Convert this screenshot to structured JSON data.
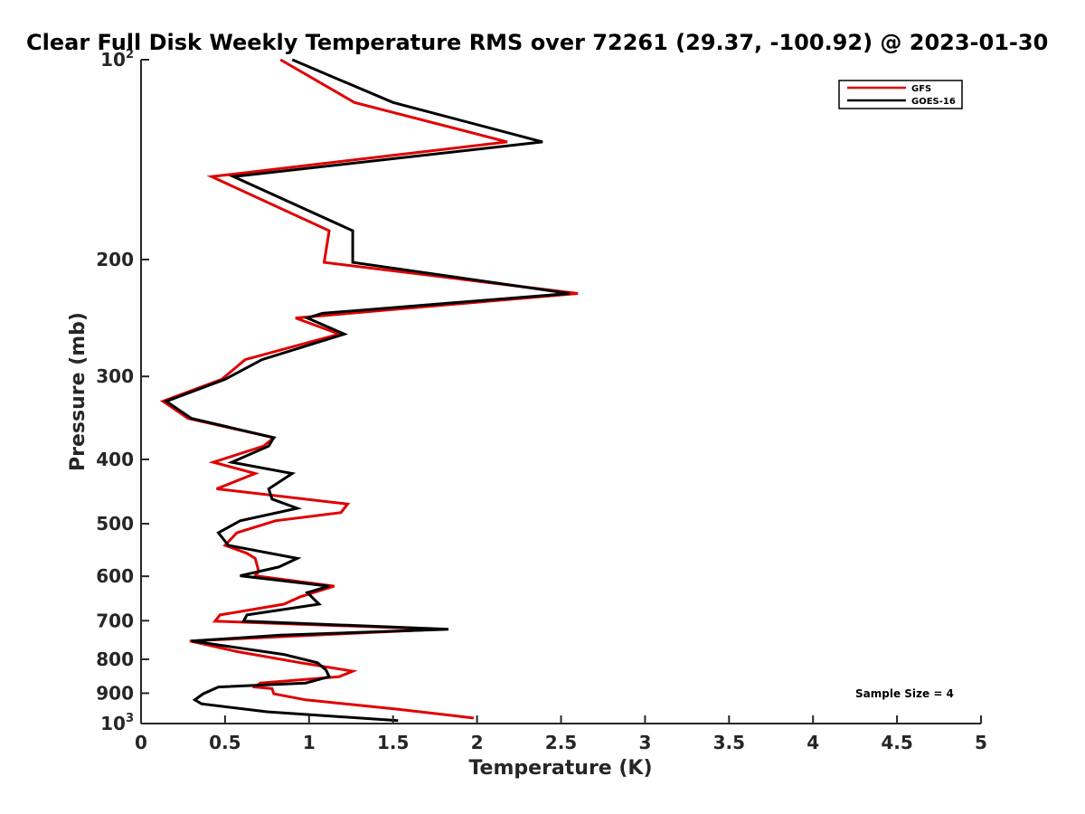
{
  "chart_data": {
    "type": "line",
    "title": "Clear Full Disk Weekly Temperature RMS over 72261 (29.37, -100.92) @ 2023-01-30",
    "xlabel": "Temperature (K)",
    "ylabel": "Pressure (mb)",
    "xlim": [
      0,
      5
    ],
    "ylim": [
      1000,
      100
    ],
    "yscale": "log",
    "y_reversed": true,
    "x_ticks": [
      "0",
      "0.5",
      "1",
      "1.5",
      "2",
      "2.5",
      "3",
      "3.5",
      "4",
      "4.5",
      "5"
    ],
    "x_tick_values": [
      0,
      0.5,
      1,
      1.5,
      2,
      2.5,
      3,
      3.5,
      4,
      4.5,
      5
    ],
    "y_ticks": [
      {
        "value": 100,
        "base": "10",
        "exp": "2"
      },
      {
        "value": 200,
        "label": "200"
      },
      {
        "value": 300,
        "label": "300"
      },
      {
        "value": 400,
        "label": "400"
      },
      {
        "value": 500,
        "label": "500"
      },
      {
        "value": 600,
        "label": "600"
      },
      {
        "value": 700,
        "label": "700"
      },
      {
        "value": 800,
        "label": "800"
      },
      {
        "value": 900,
        "label": "900"
      },
      {
        "value": 1000,
        "base": "10",
        "exp": "3"
      }
    ],
    "grid": false,
    "legend_position": "top-right",
    "annotation": "Sample Size = 4",
    "series": [
      {
        "name": "GFS",
        "color": "#e00000",
        "points": [
          [
            0.83,
            100
          ],
          [
            1.27,
            116
          ],
          [
            2.18,
            133
          ],
          [
            0.42,
            150
          ],
          [
            1.12,
            181
          ],
          [
            1.09,
            202
          ],
          [
            2.6,
            225
          ],
          [
            0.92,
            245
          ],
          [
            1.18,
            259
          ],
          [
            0.62,
            283
          ],
          [
            0.48,
            303
          ],
          [
            0.13,
            327
          ],
          [
            0.28,
            347
          ],
          [
            0.79,
            371
          ],
          [
            0.73,
            382
          ],
          [
            0.43,
            404
          ],
          [
            0.68,
            420
          ],
          [
            0.45,
            443
          ],
          [
            1.23,
            467
          ],
          [
            1.19,
            481
          ],
          [
            0.8,
            495
          ],
          [
            0.57,
            516
          ],
          [
            0.5,
            539
          ],
          [
            0.63,
            554
          ],
          [
            0.68,
            564
          ],
          [
            0.7,
            590
          ],
          [
            0.68,
            599
          ],
          [
            1.15,
            621
          ],
          [
            0.95,
            644
          ],
          [
            0.85,
            661
          ],
          [
            0.47,
            686
          ],
          [
            0.44,
            701
          ],
          [
            1.78,
            721
          ],
          [
            0.29,
            751
          ],
          [
            0.57,
            779
          ],
          [
            0.95,
            810
          ],
          [
            1.26,
            834
          ],
          [
            1.18,
            850
          ],
          [
            0.71,
            869
          ],
          [
            0.68,
            881
          ],
          [
            0.78,
            886
          ],
          [
            0.79,
            902
          ],
          [
            0.98,
            921
          ],
          [
            1.52,
            951
          ],
          [
            1.98,
            981
          ]
        ]
      },
      {
        "name": "GOES-16",
        "color": "#000000",
        "points": [
          [
            0.9,
            100
          ],
          [
            1.5,
            116
          ],
          [
            2.39,
            133
          ],
          [
            0.55,
            150
          ],
          [
            1.26,
            181
          ],
          [
            1.26,
            202
          ],
          [
            2.55,
            225
          ],
          [
            1.08,
            241
          ],
          [
            0.99,
            245
          ],
          [
            1.21,
            259
          ],
          [
            0.72,
            283
          ],
          [
            0.5,
            303
          ],
          [
            0.15,
            327
          ],
          [
            0.3,
            347
          ],
          [
            0.79,
            371
          ],
          [
            0.76,
            382
          ],
          [
            0.54,
            404
          ],
          [
            0.9,
            420
          ],
          [
            0.76,
            443
          ],
          [
            0.78,
            459
          ],
          [
            0.93,
            474
          ],
          [
            0.59,
            495
          ],
          [
            0.46,
            516
          ],
          [
            0.52,
            539
          ],
          [
            0.93,
            564
          ],
          [
            0.82,
            581
          ],
          [
            0.59,
            599
          ],
          [
            1.12,
            621
          ],
          [
            0.99,
            635
          ],
          [
            1.06,
            661
          ],
          [
            0.63,
            686
          ],
          [
            0.61,
            701
          ],
          [
            1.83,
            721
          ],
          [
            0.83,
            736
          ],
          [
            0.3,
            751
          ],
          [
            0.85,
            787
          ],
          [
            1.05,
            810
          ],
          [
            1.1,
            830
          ],
          [
            1.12,
            850
          ],
          [
            0.98,
            869
          ],
          [
            0.46,
            881
          ],
          [
            0.37,
            902
          ],
          [
            0.32,
            921
          ],
          [
            0.36,
            934
          ],
          [
            0.75,
            960
          ],
          [
            1.53,
            990
          ]
        ]
      }
    ]
  }
}
